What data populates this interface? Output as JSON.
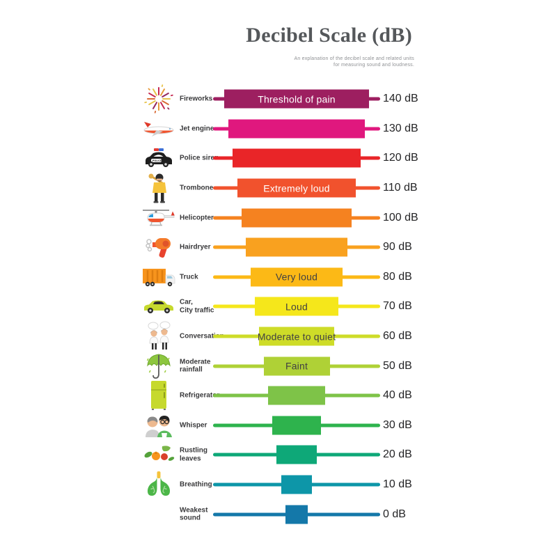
{
  "header": {
    "title": "Decibel Scale (dB)",
    "subtitle_line1": "An explanation of the decibel scale and related units",
    "subtitle_line2": "for measuring sound and loudness."
  },
  "colors": {
    "background": "#FFFFFF",
    "title_text": "#55585B",
    "subtitle_text": "#8F9194",
    "db_value_text": "#242426",
    "source_label_text": "#39393B",
    "dark_bar_label_text": "#414042",
    "light_bar_label_text": "#FFFFFF"
  },
  "chart_data": {
    "type": "bar",
    "orientation": "horizontal",
    "title": "Decibel Scale (dB)",
    "subtitle": "An explanation of the decibel scale and related units for measuring sound and loudness.",
    "value_axis": {
      "unit": "dB",
      "min": 0,
      "max": 140,
      "tick_step": 10
    },
    "legend": "none",
    "grid": "off",
    "rows": [
      {
        "source": "Fireworks",
        "db": 140,
        "db_label": "140 dB",
        "loudness": "Threshold of pain",
        "loudness_text_color": "#FFFFFF",
        "color": "#9D1F60",
        "icon": "fireworks"
      },
      {
        "source": "Jet engine",
        "db": 130,
        "db_label": "130 dB",
        "loudness": "",
        "color": "#E0187E",
        "icon": "jet-engine"
      },
      {
        "source": "Police siren",
        "db": 120,
        "db_label": "120 dB",
        "loudness": "",
        "color": "#E92528",
        "icon": "police-car"
      },
      {
        "source": "Trombone",
        "db": 110,
        "db_label": "110 dB",
        "loudness": "Extremely loud",
        "loudness_text_color": "#FFFFFF",
        "color": "#F1522D",
        "icon": "trombone-player"
      },
      {
        "source": "Helicopter",
        "db": 100,
        "db_label": "100 dB",
        "loudness": "",
        "color": "#F58220",
        "icon": "helicopter"
      },
      {
        "source": "Hairdryer",
        "db": 90,
        "db_label": "90 dB",
        "loudness": "",
        "color": "#F9A11F",
        "icon": "hairdryer"
      },
      {
        "source": "Truck",
        "db": 80,
        "db_label": "80 dB",
        "loudness": "Very loud",
        "loudness_text_color": "#414042",
        "color": "#FCB916",
        "icon": "truck"
      },
      {
        "source": "Car,\nCity traffic",
        "db": 70,
        "db_label": "70 dB",
        "loudness": "Loud",
        "loudness_text_color": "#414042",
        "color": "#F5E71B",
        "icon": "car"
      },
      {
        "source": "Conversation",
        "db": 60,
        "db_label": "60 dB",
        "loudness": "Moderate to quiet",
        "loudness_text_color": "#414042",
        "color": "#CEDC28",
        "icon": "conversation"
      },
      {
        "source": "Moderate\nrainfall",
        "db": 50,
        "db_label": "50 dB",
        "loudness": "Faint",
        "loudness_text_color": "#414042",
        "color": "#AFD136",
        "icon": "umbrella"
      },
      {
        "source": "Refrigerator",
        "db": 40,
        "db_label": "40 dB",
        "loudness": "",
        "color": "#7EC348",
        "icon": "refrigerator"
      },
      {
        "source": "Whisper",
        "db": 30,
        "db_label": "30 dB",
        "loudness": "",
        "color": "#2EB34D",
        "icon": "whisper"
      },
      {
        "source": "Rustling\nleaves",
        "db": 20,
        "db_label": "20 dB",
        "loudness": "",
        "color": "#0EA878",
        "icon": "leaves"
      },
      {
        "source": "Breathing",
        "db": 10,
        "db_label": "10 dB",
        "loudness": "",
        "color": "#0D96A8",
        "icon": "lungs"
      },
      {
        "source": "Weakest sound",
        "db": 0,
        "db_label": "0 dB",
        "loudness": "",
        "color": "#1478A9",
        "icon": "none"
      }
    ]
  }
}
